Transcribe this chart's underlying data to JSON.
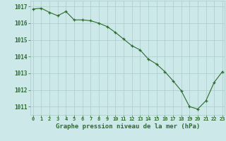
{
  "hours": [
    0,
    1,
    2,
    3,
    4,
    5,
    6,
    7,
    8,
    9,
    10,
    11,
    12,
    13,
    14,
    15,
    16,
    17,
    18,
    19,
    20,
    21,
    22,
    23
  ],
  "pressure": [
    1016.85,
    1016.9,
    1016.65,
    1016.45,
    1016.7,
    1016.2,
    1016.2,
    1016.15,
    1016.0,
    1015.8,
    1015.45,
    1015.05,
    1014.65,
    1014.4,
    1013.85,
    1013.55,
    1013.1,
    1012.55,
    1011.95,
    1011.0,
    1010.85,
    1011.35,
    1012.45,
    1013.1
  ],
  "line_color": "#2d6b2d",
  "marker": "+",
  "bg_color": "#cce8e8",
  "grid_color": "#aacccc",
  "xlabel": "Graphe pression niveau de la mer (hPa)",
  "tick_color": "#2d6b2d",
  "ylim_min": 1010.5,
  "ylim_max": 1017.35,
  "yticks": [
    1011,
    1012,
    1013,
    1014,
    1015,
    1016,
    1017
  ]
}
